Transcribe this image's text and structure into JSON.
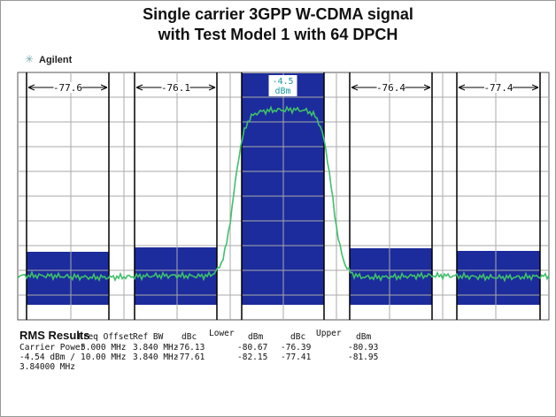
{
  "header": {
    "title_lines": [
      "Single carrier 3GPP W-CDMA signal",
      "with Test Model 1 with 64 DPCH"
    ]
  },
  "brand": "Agilent",
  "channels": [
    {
      "label": "-77.6"
    },
    {
      "label": "-76.1"
    },
    {
      "label": [
        "-4.5",
        "dBm"
      ]
    },
    {
      "label": "-76.4"
    },
    {
      "label": "-77.4"
    }
  ],
  "results": {
    "title": "RMS Results",
    "columns": [
      "Freq Offset",
      "Ref BW",
      "dBc",
      "Lower",
      "dBm",
      "dBc",
      "Upper",
      "dBm"
    ],
    "carrier": [
      "Carrier Power",
      "-4.54 dBm /",
      "3.84000 MHz"
    ],
    "rows": [
      [
        "5.000 MHz",
        "3.840 MHz",
        "-76.13",
        "-80.67",
        "-76.39",
        "-80.93"
      ],
      [
        "10.00 MHz",
        "3.840 MHz",
        "-77.61",
        "-82.15",
        "-77.41",
        "-81.95"
      ]
    ]
  }
}
